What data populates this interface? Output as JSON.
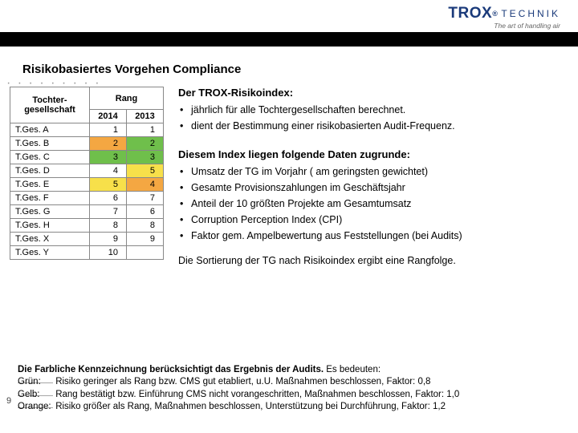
{
  "brand": {
    "name": "TROX",
    "sub": "TECHNIK",
    "reg": "®",
    "tagline": "The art of handling air"
  },
  "title": "Risikobasiertes Vorgehen Compliance",
  "table": {
    "head_main_c1": "Tochter-\ngesellschaft",
    "head_main_c2": "Rang",
    "head_sub_y1": "2014",
    "head_sub_y2": "2013",
    "rows": [
      {
        "label": "T.Ges. A",
        "y1": "1",
        "y2": "1",
        "c1": "",
        "c2": ""
      },
      {
        "label": "T.Ges. B",
        "y1": "2",
        "y2": "2",
        "c1": "orange",
        "c2": "green"
      },
      {
        "label": "T.Ges. C",
        "y1": "3",
        "y2": "3",
        "c1": "green",
        "c2": "green"
      },
      {
        "label": "T.Ges. D",
        "y1": "4",
        "y2": "5",
        "c1": "",
        "c2": "yellow"
      },
      {
        "label": "T.Ges. E",
        "y1": "5",
        "y2": "4",
        "c1": "yellow",
        "c2": "orange"
      },
      {
        "label": "T.Ges. F",
        "y1": "6",
        "y2": "7",
        "c1": "",
        "c2": ""
      },
      {
        "label": "T.Ges. G",
        "y1": "7",
        "y2": "6",
        "c1": "",
        "c2": ""
      },
      {
        "label": "T.Ges. H",
        "y1": "8",
        "y2": "8",
        "c1": "",
        "c2": ""
      },
      {
        "label": "T.Ges. X",
        "y1": "9",
        "y2": "9",
        "c1": "",
        "c2": ""
      },
      {
        "label": "T.Ges. Y",
        "y1": "10",
        "y2": "",
        "c1": "",
        "c2": ""
      }
    ]
  },
  "section1_h": "Der TROX-Risikoindex:",
  "section1_items": [
    "jährlich für alle Tochtergesellschaften berechnet.",
    "dient der Bestimmung einer risikobasierten Audit-Frequenz."
  ],
  "section2_h": "Diesem Index liegen folgende Daten zugrunde:",
  "section2_items": [
    "Umsatz der TG im Vorjahr ( am geringsten gewichtet)",
    "Gesamte Provisionszahlungen im Geschäftsjahr",
    "Anteil der 10 größten Projekte am Gesamtumsatz",
    "Corruption Perception Index (CPI)",
    "Faktor gem. Ampelbewertung aus Feststellungen (bei Audits)"
  ],
  "sort_line": "Die Sortierung der TG nach Risikoindex ergibt eine Rangfolge.",
  "footer": {
    "lead_b": "Die Farbliche Kennzeichnung berücksichtigt das Ergebnis der Audits.",
    "lead_r": " Es bedeuten:",
    "rows": [
      {
        "c": "Grün:",
        "t": " Risiko geringer als Rang bzw. CMS gut etabliert, u.U. Maßnahmen beschlossen, Faktor: 0,8"
      },
      {
        "c": "Gelb:",
        "t": " Rang bestätigt bzw. Einführung CMS nicht vorangeschritten, Maßnahmen beschlossen, Faktor: 1,0"
      },
      {
        "c": "Orange:",
        "t": " Risiko größer als Rang, Maßnahmen beschlossen, Unterstützung bei Durchführung, Faktor: 1,2"
      }
    ]
  },
  "pagenum": "9",
  "colors": {
    "green": "#6fbf4b",
    "yellow": "#f7e04a",
    "orange": "#f4a742",
    "brand": "#1a3a7a"
  }
}
